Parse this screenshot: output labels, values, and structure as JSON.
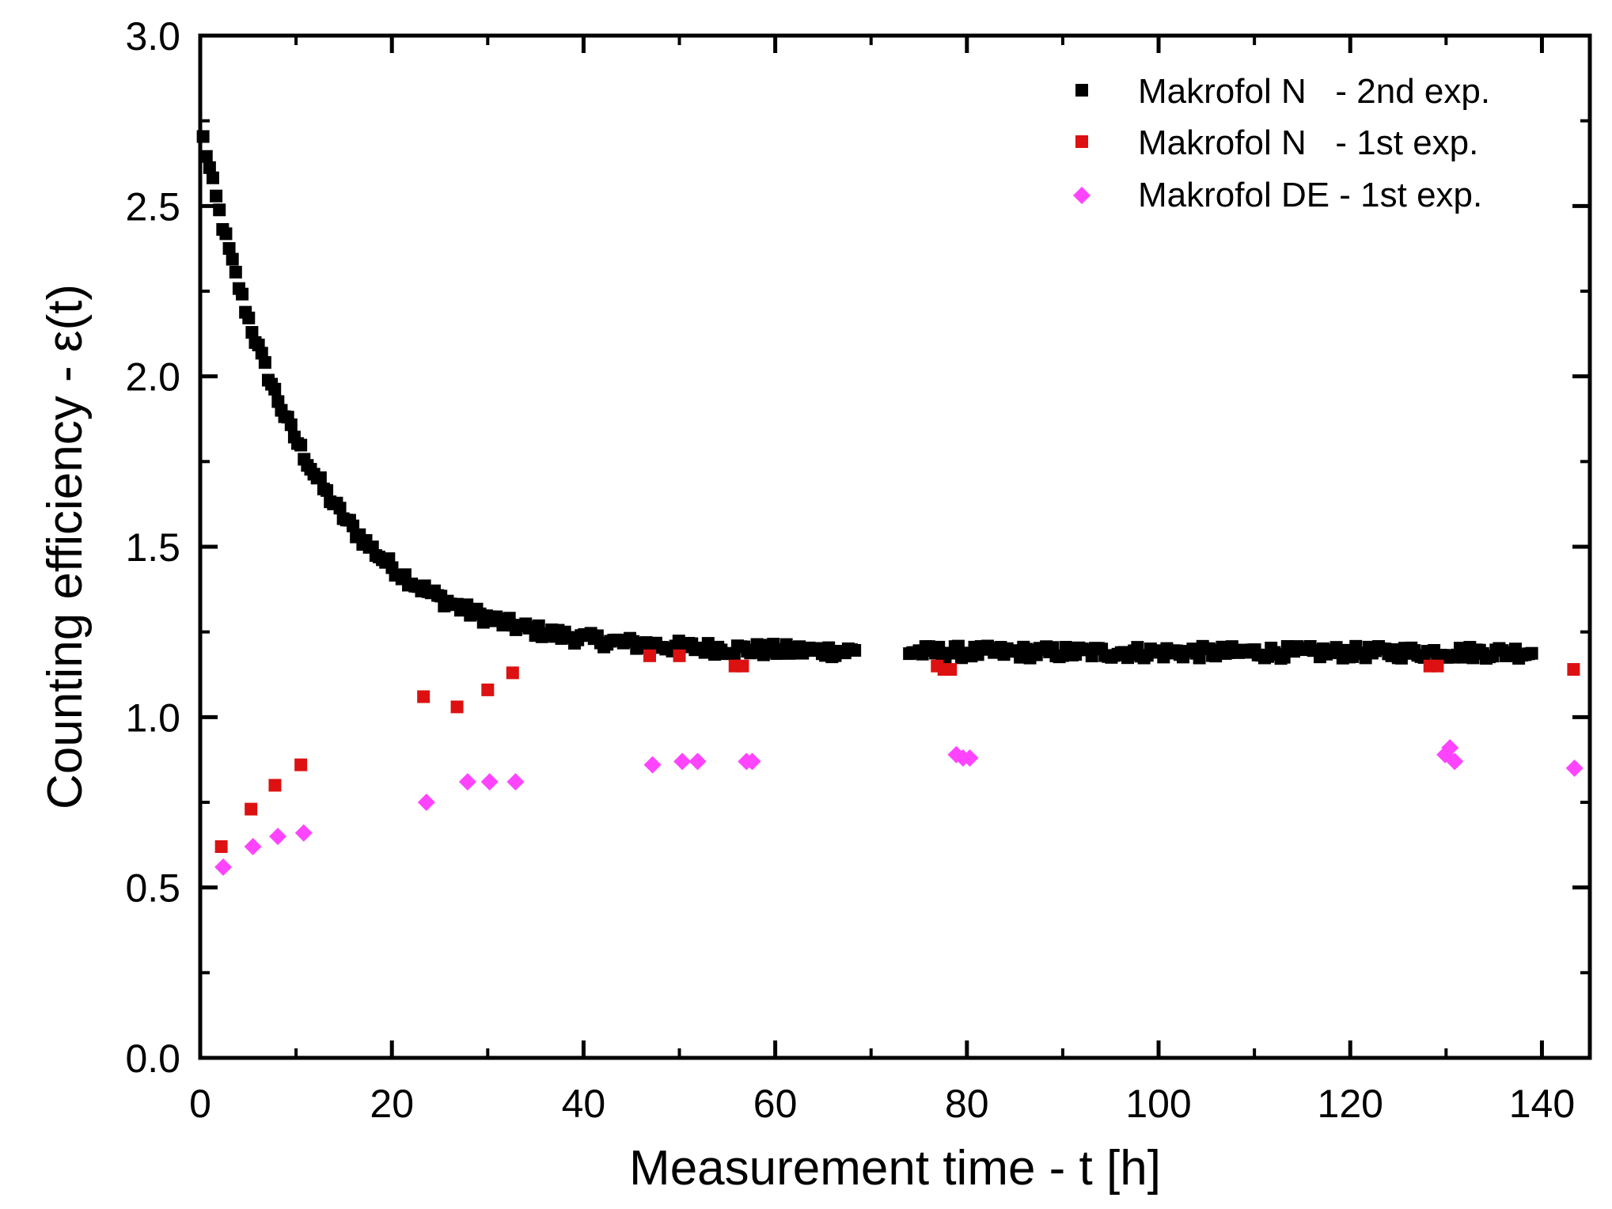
{
  "chart_data": {
    "type": "scatter",
    "title": "",
    "xlabel": "Measurement time - t [h]",
    "ylabel": "Counting efficiency - ε(t)",
    "xlim": [
      0,
      145
    ],
    "ylim": [
      0,
      3.0
    ],
    "xticks": [
      0,
      20,
      40,
      60,
      80,
      100,
      120,
      140
    ],
    "yticks": [
      0.0,
      0.5,
      1.0,
      1.5,
      2.0,
      2.5,
      3.0
    ],
    "xtick_labels": [
      "0",
      "20",
      "40",
      "60",
      "80",
      "100",
      "120",
      "140"
    ],
    "ytick_labels": [
      "0.0",
      "0.5",
      "1.0",
      "1.5",
      "2.0",
      "2.5",
      "3.0"
    ],
    "legend_position": "top-right",
    "series": [
      {
        "name": "Makrofol N   - 2nd exp.",
        "marker": "square",
        "color": "#000000",
        "model": {
          "form": "a + b*exp(-t/tau) + noise",
          "a": 1.19,
          "b": 1.55,
          "tau": 11.0,
          "noise": 0.018,
          "t_start": 0.3,
          "ranges": [
            [
              0.3,
              68.5,
              0.34
            ],
            [
              74.0,
              139.0,
              0.34
            ]
          ]
        }
      },
      {
        "name": "Makrofol N   - 1st exp.",
        "marker": "square",
        "color": "#dd1111",
        "x": [
          2.2,
          5.3,
          7.8,
          10.5,
          23.3,
          26.8,
          30.0,
          32.6,
          46.9,
          50.0,
          55.8,
          56.6,
          76.9,
          77.6,
          78.3,
          128.3,
          129.1,
          143.3
        ],
        "y": [
          0.62,
          0.73,
          0.8,
          0.86,
          1.06,
          1.03,
          1.08,
          1.13,
          1.18,
          1.18,
          1.15,
          1.15,
          1.15,
          1.14,
          1.14,
          1.15,
          1.15,
          1.14
        ]
      },
      {
        "name": "Makrofol DE - 1st exp.",
        "marker": "diamond",
        "color": "#ff44ff",
        "x": [
          2.4,
          5.5,
          8.1,
          10.8,
          23.6,
          27.9,
          30.2,
          32.9,
          47.2,
          50.3,
          51.9,
          57.0,
          57.6,
          78.9,
          79.6,
          80.3,
          129.9,
          130.4,
          130.9,
          143.4
        ],
        "y": [
          0.56,
          0.62,
          0.65,
          0.66,
          0.75,
          0.81,
          0.81,
          0.81,
          0.86,
          0.87,
          0.87,
          0.87,
          0.87,
          0.89,
          0.88,
          0.88,
          0.89,
          0.91,
          0.87,
          0.85
        ]
      }
    ]
  }
}
